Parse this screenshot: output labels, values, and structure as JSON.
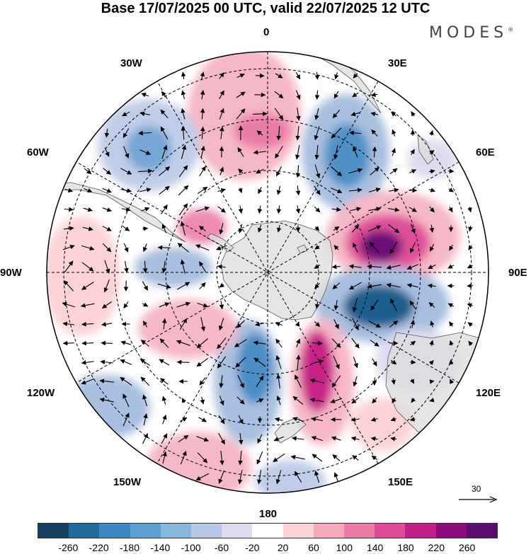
{
  "title": "Base 17/07/2025 00 UTC, valid 22/07/2025 12 UTC",
  "brand": "MODES",
  "brand_mark": "®",
  "longitude_labels": {
    "lon_0": "0",
    "lon_30e": "30E",
    "lon_60e": "60E",
    "lon_90e": "90E",
    "lon_120e": "120E",
    "lon_150e": "150E",
    "lon_180": "180",
    "lon_150w": "150W",
    "lon_120w": "120W",
    "lon_90w": "90W",
    "lon_60w": "60W",
    "lon_30w": "30W"
  },
  "vector_scale_label": "30",
  "colorbar": {
    "colors": [
      "#13405f",
      "#1f6b9c",
      "#3b88c2",
      "#5a9fce",
      "#87b6dc",
      "#b7c9e6",
      "#dedbee",
      "#ffffff",
      "#fbd3d6",
      "#f6a9bb",
      "#ee7aa6",
      "#e14b98",
      "#c41e88",
      "#8d0c7b",
      "#5a0c72"
    ],
    "ticks": [
      "-260",
      "-220",
      "-180",
      "-140",
      "-100",
      "-60",
      "-20",
      "20",
      "60",
      "100",
      "140",
      "180",
      "220",
      "260"
    ]
  },
  "colors": {
    "land": "#dcdcdc",
    "coast": "#5a5a5a",
    "graticule": "#000000"
  }
}
